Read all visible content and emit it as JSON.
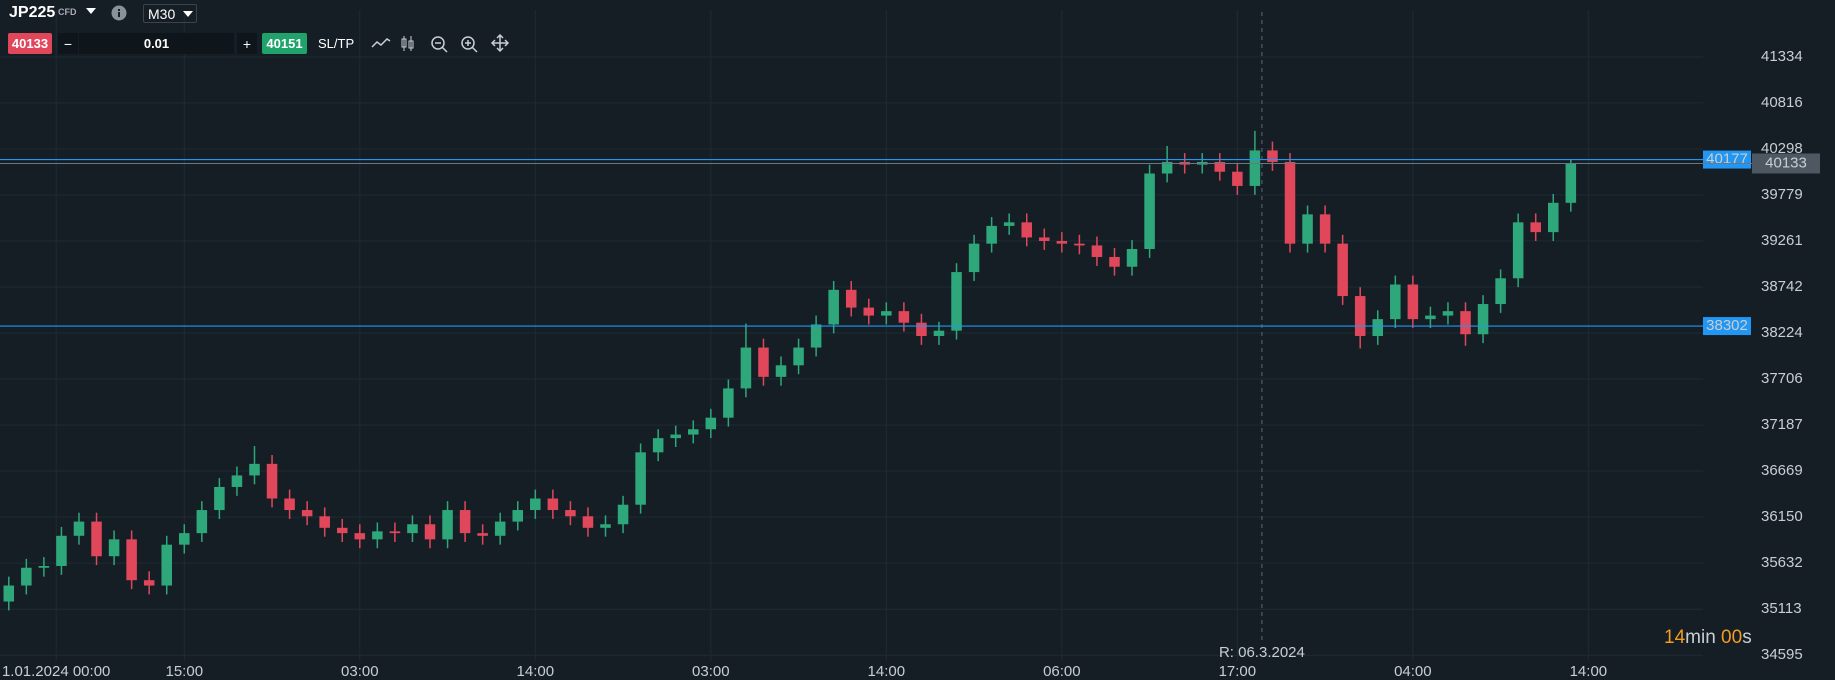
{
  "toolbar": {
    "symbol": "JP225",
    "kind": "CFD",
    "timeframe": "M30",
    "sell": "40133",
    "minus": "−",
    "volume": "0.01",
    "plus": "+",
    "buy": "40151",
    "sltp": "SL/TP"
  },
  "countdown": {
    "minutes": "14",
    "min_unit": "min",
    "seconds": "00",
    "sec_unit": "s"
  },
  "chart_data": {
    "type": "candlestick",
    "up_color": "#2ea87a",
    "down_color": "#e0475b",
    "xlim": [
      -0.5,
      97.5
    ],
    "ylim": [
      34530,
      41974
    ],
    "xticks": [
      {
        "value": 2.7,
        "label": "1.01.2024 00:00"
      },
      {
        "value": 10,
        "label": "15:00"
      },
      {
        "value": 20,
        "label": "03:00"
      },
      {
        "value": 30,
        "label": "14:00"
      },
      {
        "value": 40,
        "label": "03:00"
      },
      {
        "value": 50,
        "label": "14:00"
      },
      {
        "value": 60,
        "label": "06:00"
      },
      {
        "value": 70,
        "label": "17:00"
      },
      {
        "value": 80,
        "label": "04:00"
      },
      {
        "value": 90,
        "label": "14:00"
      }
    ],
    "yticks": [
      41334,
      40816,
      40298,
      39779,
      39261,
      38742,
      38224,
      37706,
      37187,
      36669,
      36150,
      35632,
      35113,
      34595
    ],
    "grid": true,
    "lines": [
      {
        "value": 40177,
        "color": "#2196f3"
      },
      {
        "value": 38302,
        "color": "#2196f3"
      }
    ],
    "last_price": 40133,
    "vline": {
      "x": 71.4,
      "label": "R: 06.3.2024"
    },
    "open": [
      35200,
      35380,
      35580,
      35600,
      35940,
      36100,
      35710,
      35900,
      35440,
      35380,
      35840,
      35970,
      36230,
      36490,
      36620,
      36750,
      36360,
      36230,
      36160,
      36030,
      35970,
      35900,
      35990,
      35970,
      36070,
      35900,
      36230,
      35970,
      35940,
      36100,
      36230,
      36360,
      36230,
      36160,
      36030,
      36070,
      36290,
      36880,
      37040,
      37080,
      37140,
      37270,
      37600,
      38060,
      37730,
      37860,
      38060,
      38320,
      38710,
      38510,
      38420,
      38470,
      38340,
      38190,
      38250,
      38910,
      39230,
      39430,
      39470,
      39300,
      39260,
      39230,
      39210,
      39080,
      38970,
      39170,
      40020,
      40150,
      40120,
      40150,
      40040,
      39880,
      40280,
      40150,
      39230,
      39560,
      39230,
      38640,
      38190,
      38380,
      38770,
      38380,
      38420,
      38470,
      38210,
      38550,
      38840,
      39470,
      39360,
      39690
    ],
    "high": [
      35480,
      35680,
      35700,
      36040,
      36200,
      36200,
      36000,
      36000,
      35540,
      35940,
      36070,
      36330,
      36590,
      36720,
      36950,
      36850,
      36460,
      36330,
      36260,
      36130,
      36070,
      36090,
      36090,
      36170,
      36170,
      36330,
      36330,
      36070,
      36200,
      36330,
      36460,
      36460,
      36330,
      36260,
      36170,
      36390,
      36980,
      37140,
      37180,
      37240,
      37370,
      37700,
      38330,
      38160,
      37960,
      38160,
      38420,
      38810,
      38810,
      38610,
      38570,
      38570,
      38440,
      38350,
      39010,
      39330,
      39530,
      39570,
      39570,
      39400,
      39360,
      39330,
      39310,
      39180,
      39270,
      40120,
      40330,
      40250,
      40250,
      40250,
      40140,
      40500,
      40380,
      40250,
      39660,
      39660,
      39330,
      38740,
      38480,
      38870,
      38870,
      38520,
      38570,
      38570,
      38650,
      38940,
      39570,
      39570,
      39790,
      40180
    ],
    "low": [
      35100,
      35280,
      35480,
      35500,
      35840,
      35610,
      35610,
      35340,
      35280,
      35280,
      35740,
      35870,
      36130,
      36390,
      36520,
      36260,
      36130,
      36060,
      35930,
      35870,
      35800,
      35800,
      35870,
      35870,
      35800,
      35800,
      35870,
      35840,
      35840,
      36000,
      36130,
      36130,
      36060,
      35930,
      35930,
      35970,
      36190,
      36780,
      36940,
      36980,
      37040,
      37170,
      37500,
      37630,
      37630,
      37760,
      37960,
      38220,
      38410,
      38320,
      38320,
      38240,
      38090,
      38090,
      38150,
      38810,
      39130,
      39330,
      39200,
      39160,
      39130,
      39110,
      38980,
      38870,
      38870,
      39070,
      39920,
      40020,
      40020,
      39940,
      39780,
      39780,
      40050,
      39130,
      39130,
      39130,
      38540,
      38050,
      38090,
      38280,
      38280,
      38280,
      38320,
      38080,
      38110,
      38450,
      38740,
      39260,
      39260,
      39590
    ],
    "close": [
      35380,
      35580,
      35600,
      35940,
      36100,
      35710,
      35900,
      35440,
      35380,
      35840,
      35970,
      36230,
      36490,
      36620,
      36750,
      36360,
      36230,
      36160,
      36030,
      35970,
      35900,
      35990,
      35970,
      36070,
      35900,
      36230,
      35970,
      35940,
      36100,
      36230,
      36360,
      36230,
      36160,
      36030,
      36070,
      36290,
      36880,
      37040,
      37080,
      37140,
      37270,
      37600,
      38060,
      37730,
      37860,
      38060,
      38320,
      38710,
      38510,
      38420,
      38470,
      38340,
      38190,
      38250,
      38910,
      39230,
      39430,
      39470,
      39300,
      39260,
      39230,
      39210,
      39080,
      38970,
      39170,
      40020,
      40150,
      40120,
      40150,
      40040,
      39880,
      40280,
      40150,
      39230,
      39560,
      39230,
      38640,
      38190,
      38380,
      38770,
      38380,
      38420,
      38470,
      38210,
      38550,
      38840,
      39470,
      39360,
      39690,
      40133
    ]
  }
}
